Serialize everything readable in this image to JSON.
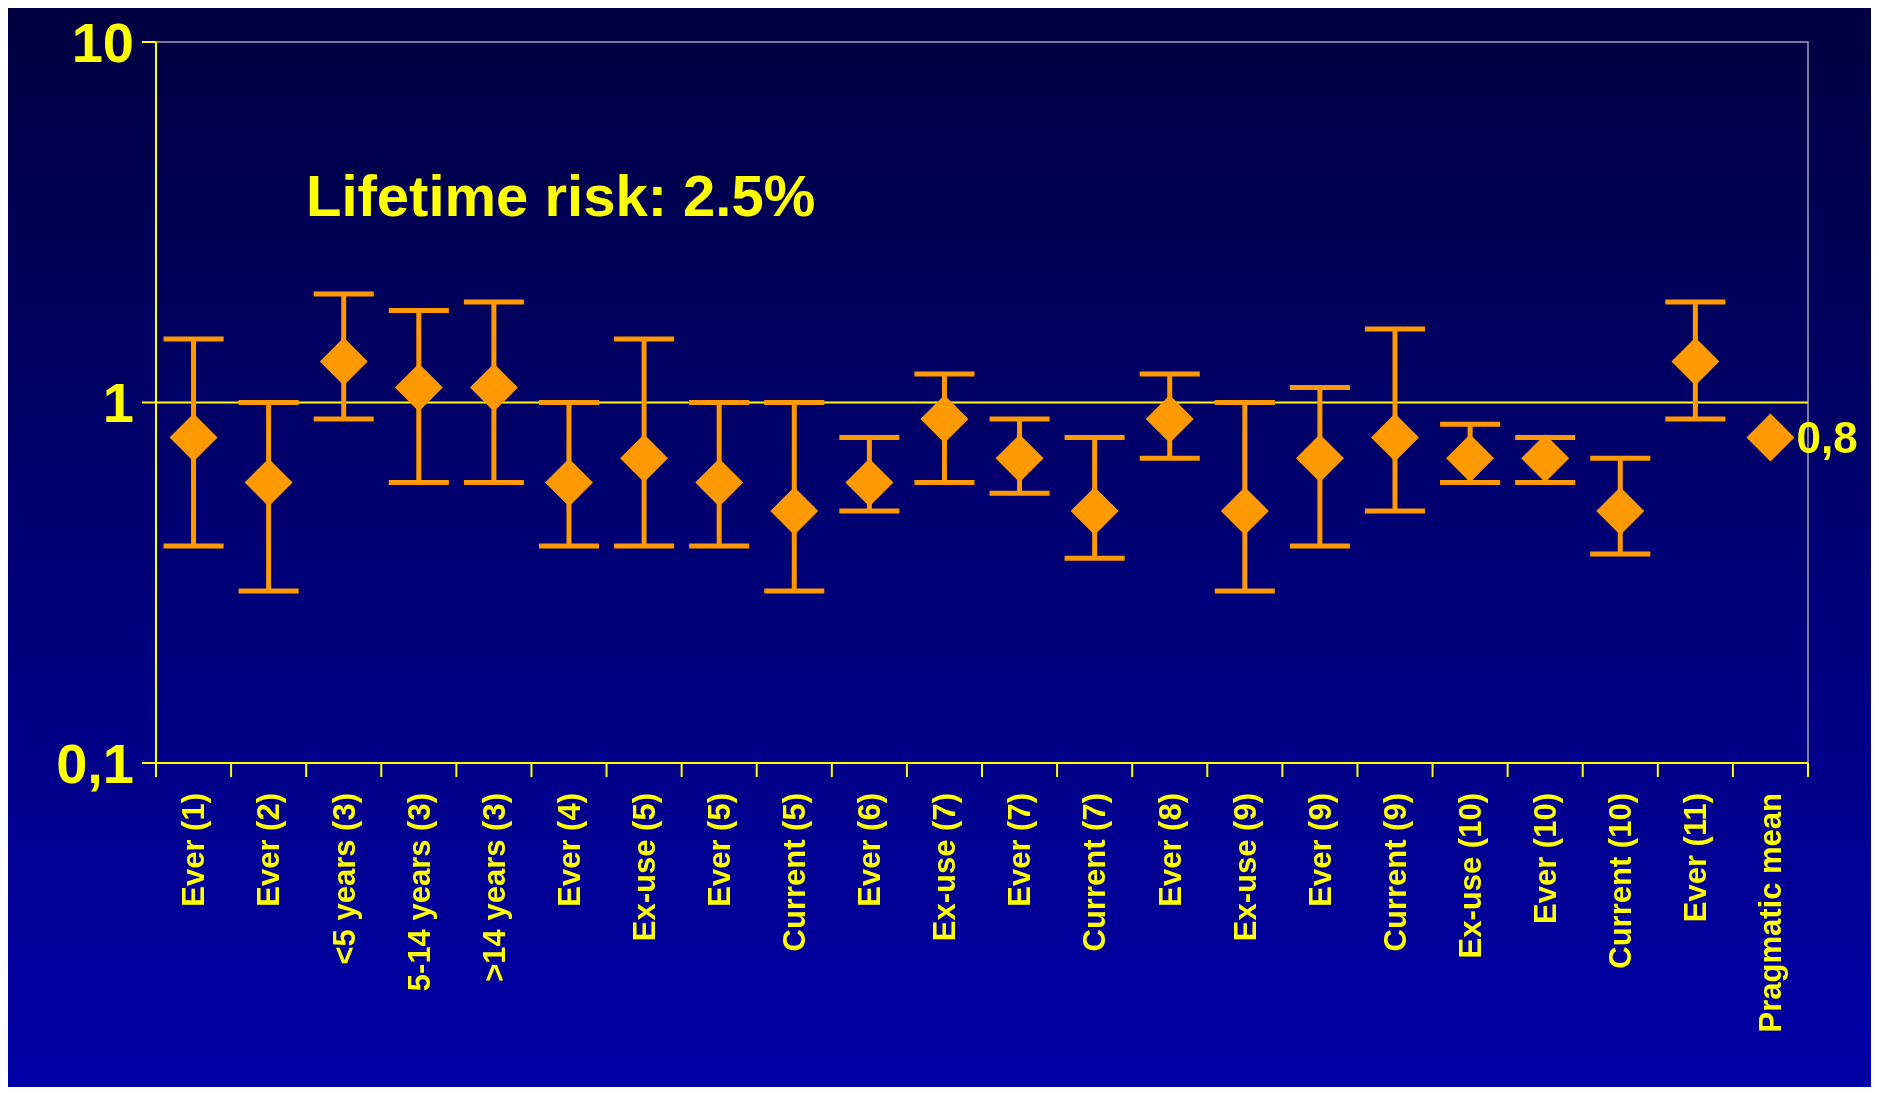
{
  "chart_data": {
    "type": "scatter",
    "marker": "diamond",
    "log": "y",
    "ref_lines": [
      {
        "axis": "y",
        "value": 1,
        "color": "#ffff00"
      }
    ],
    "categories": [
      "Ever (1)",
      "Ever (2)",
      "<5 years (3)",
      "5-14 years (3)",
      ">14 years (3)",
      "Ever (4)",
      "Ex-use (5)",
      "Ever (5)",
      "Current (5)",
      "Ever (6)",
      "Ex-use (7)",
      "Ever (7)",
      "Current (7)",
      "Ever (8)",
      "Ex-use (9)",
      "Ever (9)",
      "Current (9)",
      "Ex-use (10)",
      "Ever (10)",
      "Current (10)",
      "Ever (11)",
      "Pragmatic mean"
    ],
    "series": [
      {
        "color": "#ff9900",
        "values": [
          0.8,
          0.6,
          1.3,
          1.1,
          1.1,
          0.6,
          0.7,
          0.6,
          0.5,
          0.6,
          0.9,
          0.7,
          0.5,
          0.9,
          0.5,
          0.7,
          0.8,
          0.7,
          0.7,
          0.5,
          1.3,
          0.8
        ],
        "errors": [
          [
            0.4,
            1.5
          ],
          [
            0.3,
            1.0
          ],
          [
            0.9,
            2.0
          ],
          [
            0.6,
            1.8
          ],
          [
            0.6,
            1.9
          ],
          [
            0.4,
            1.0
          ],
          [
            0.4,
            1.5
          ],
          [
            0.4,
            1.0
          ],
          [
            0.3,
            1.0
          ],
          [
            0.5,
            0.8
          ],
          [
            0.6,
            1.2
          ],
          [
            0.56,
            0.9
          ],
          [
            0.37,
            0.8
          ],
          [
            0.7,
            1.2
          ],
          [
            0.3,
            1.0
          ],
          [
            0.4,
            1.1
          ],
          [
            0.5,
            1.6
          ],
          [
            0.6,
            0.87
          ],
          [
            0.6,
            0.8
          ],
          [
            0.38,
            0.7
          ],
          [
            0.9,
            1.9
          ],
          null
        ],
        "value_labels": [
          null,
          null,
          null,
          null,
          null,
          null,
          null,
          null,
          null,
          null,
          null,
          null,
          null,
          null,
          null,
          null,
          null,
          null,
          null,
          null,
          null,
          "0,8"
        ]
      }
    ],
    "ylim": [
      0.1,
      10
    ],
    "yticks": [
      10,
      1,
      {
        "value": 0.1,
        "label": "0,1"
      }
    ],
    "annotations": [
      "Lifetime risk: 2.5%"
    ]
  }
}
